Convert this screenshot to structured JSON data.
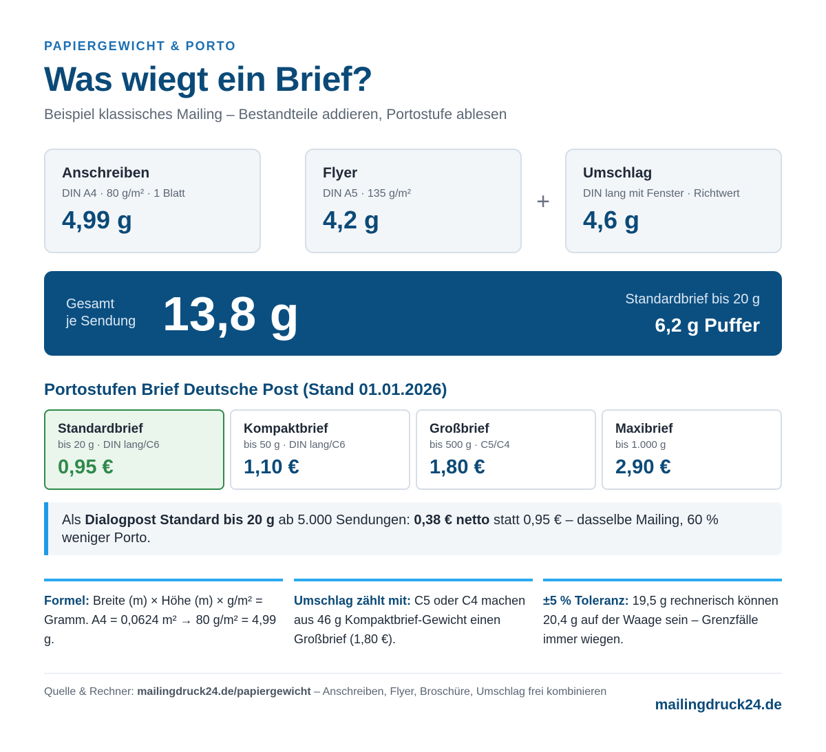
{
  "header": {
    "eyebrow": "PAPIERGEWICHT & PORTO",
    "title": "Was wiegt ein Brief?",
    "subtitle": "Beispiel klassisches Mailing – Bestandteile addieren, Portostufe ablesen"
  },
  "components": [
    {
      "name": "Anschreiben",
      "spec": "DIN A4 · 80 g/m² · 1 Blatt",
      "weight": "4,99 g"
    },
    {
      "name": "Flyer",
      "spec": "DIN A5 · 135 g/m²",
      "weight": "4,2 g"
    },
    {
      "name": "Umschlag",
      "spec": "DIN lang mit Fenster · Richtwert",
      "weight": "4,6 g"
    }
  ],
  "operator": "+",
  "total": {
    "label_line1": "Gesamt",
    "label_line2": "je Sendung",
    "value": "13,8 g",
    "limit": "Standardbrief bis 20 g",
    "buffer": "6,2 g Puffer"
  },
  "tiers_title": "Portostufen Brief Deutsche Post (Stand 01.01.2026)",
  "tiers": [
    {
      "name": "Standardbrief",
      "spec": "bis 20 g · DIN lang/C6",
      "price": "0,95 €",
      "active": true
    },
    {
      "name": "Kompaktbrief",
      "spec": "bis 50 g · DIN lang/C6",
      "price": "1,10 €",
      "active": false
    },
    {
      "name": "Großbrief",
      "spec": "bis 500 g · C5/C4",
      "price": "1,80 €",
      "active": false
    },
    {
      "name": "Maxibrief",
      "spec": "bis 1.000 g",
      "price": "2,90 €",
      "active": false
    }
  ],
  "callout": {
    "t1": "Als ",
    "b1": "Dialogpost Standard bis 20 g",
    "t2": " ab 5.000 Sendungen: ",
    "b2": "0,38 € netto",
    "t3": " statt 0,95 € – dasselbe Mailing, 60 % weniger Porto."
  },
  "notes": [
    {
      "lead": "Formel:",
      "text": " Breite (m) × Höhe (m) × g/m² = Gramm. A4 = 0,0624 m² → 80 g/m² = 4,99 g."
    },
    {
      "lead": "Umschlag zählt mit:",
      "text": " C5 oder C4 machen aus 46 g Kompaktbrief-Gewicht einen Großbrief (1,80 €)."
    },
    {
      "lead": "±5 % Toleranz:",
      "text": " 19,5 g rechnerisch können 20,4 g auf der Waage sein – Grenzfälle immer wiegen."
    }
  ],
  "footer": {
    "source_prefix": "Quelle & Rechner: ",
    "source_host": "mailingdruck24.de/papiergewicht",
    "source_suffix": " – Anschreiben, Flyer, Broschüre, Umschlag frei kombinieren",
    "brand": "mailingdruck24.de"
  },
  "colors": {
    "primary": "#0b4a78",
    "accent": "#1b6fb3",
    "active_green": "#2f8a4a",
    "callout_bar": "#1e9be8"
  }
}
